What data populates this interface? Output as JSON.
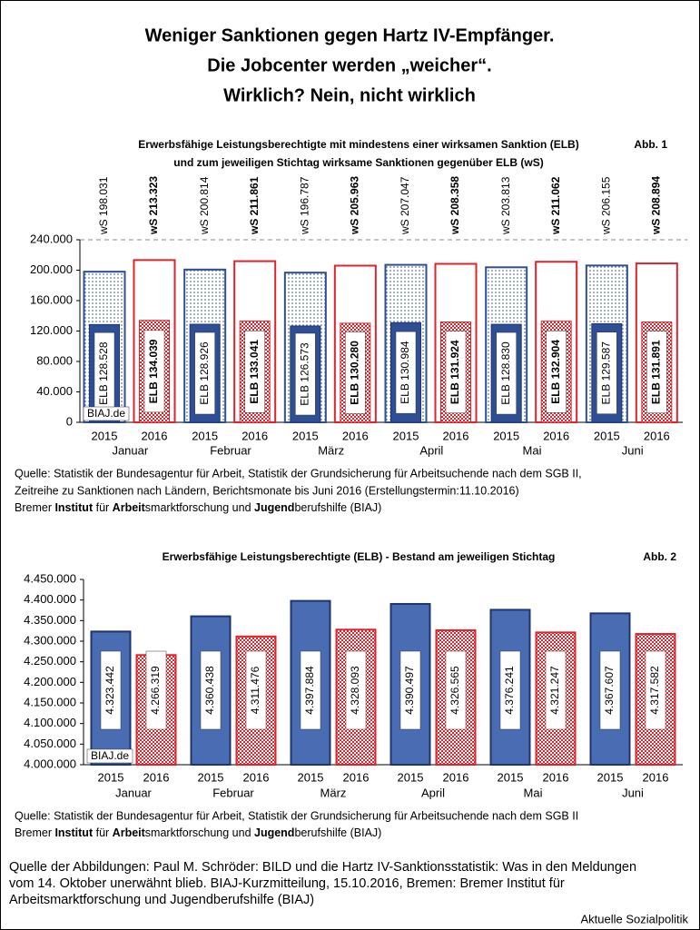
{
  "title": [
    "Weniger Sanktionen gegen Hartz IV-Empfänger.",
    "Die Jobcenter werden „weicher“.",
    "Wirklich? Nein, nicht wirklich"
  ],
  "chart_data": [
    {
      "type": "bar",
      "title": "Erwerbsfähige Leistungsberechtigte mit mindestens einer wirksamen Sanktion (ELB)",
      "subtitle": "und zum jeweiligen Stichtag wirksame Sanktionen gegenüber ELB (wS)",
      "figure_label": "Abb. 1",
      "categories": [
        "Januar",
        "Februar",
        "März",
        "April",
        "Mai",
        "Juni"
      ],
      "series": [
        {
          "name": "2015",
          "color": "#2f4f94",
          "values": [
            198031,
            200814,
            196787,
            207047,
            203813,
            206155
          ],
          "value_labels": [
            "wS 198.031",
            "wS 200.814",
            "wS 196.787",
            "wS 207.047",
            "wS 203.813",
            "wS 206.155"
          ],
          "inner_values": [
            128528,
            128926,
            126573,
            130984,
            128830,
            129587
          ],
          "inner_value_labels": [
            "ELB 128.528",
            "ELB 128.926",
            "ELB 126.573",
            "ELB 130.984",
            "ELB 128.830",
            "ELB 129.587"
          ]
        },
        {
          "name": "2016",
          "color": "#e0242b",
          "values": [
            213323,
            211861,
            205963,
            208358,
            211062,
            208894
          ],
          "value_labels": [
            "wS 213.323",
            "wS 211.861",
            "wS 205.963",
            "wS 208.358",
            "wS 211.062",
            "wS 208.894"
          ],
          "inner_values": [
            134039,
            133041,
            130280,
            131924,
            132904,
            131891
          ],
          "inner_value_labels": [
            "ELB 134.039",
            "ELB 133.041",
            "ELB 130.280",
            "ELB 131.924",
            "ELB 132.904",
            "ELB 131.891"
          ]
        }
      ],
      "ylim": [
        0,
        240000
      ],
      "yticks": [
        0,
        {
          "value": 40000,
          "label": "40.000"
        },
        {
          "value": 80000,
          "label": "80.000"
        },
        {
          "value": 120000,
          "label": "120.000"
        },
        {
          "value": 160000,
          "label": "160.000"
        },
        {
          "value": 200000,
          "label": "200.000"
        },
        {
          "value": 240000,
          "label": "240.000"
        }
      ],
      "watermark": "BIAJ.de",
      "source": [
        "Quelle:  Statistik der Bundesagentur für Arbeit, Statistik der Grundsicherung für Arbeitsuchende nach dem SGB II,",
        "Zeitreihe zu Sanktionen nach Ländern, Berichtsmonate bis Juni 2016 (Erstellungstermin:11.10.2016)"
      ],
      "credit": [
        "Bremer ",
        "Institut",
        " für ",
        "Arbeit",
        "smarktforschung und ",
        "Jugend",
        "berufshilfe (BIAJ)"
      ]
    },
    {
      "type": "bar",
      "title": "Erwerbsfähige Leistungsberechtigte (ELB) - Bestand am jeweiligen Stichtag",
      "figure_label": "Abb. 2",
      "categories": [
        "Januar",
        "Februar",
        "März",
        "April",
        "Mai",
        "Juni"
      ],
      "series": [
        {
          "name": "2015",
          "color": "#4a6cb3",
          "values": [
            4323442,
            4360438,
            4397884,
            4390497,
            4376241,
            4367607
          ],
          "value_labels": [
            "4.323.442",
            "4.360.438",
            "4.397.884",
            "4.390.497",
            "4.376.241",
            "4.367.607"
          ]
        },
        {
          "name": "2016",
          "color": "#e0242b",
          "values": [
            4266319,
            4311476,
            4328093,
            4326565,
            4321247,
            4317582
          ],
          "value_labels": [
            "4.266.319",
            "4.311.476",
            "4.328.093",
            "4.326.565",
            "4.321.247",
            "4.317.582"
          ]
        }
      ],
      "ylim": [
        4000000,
        4450000
      ],
      "yticks": [
        {
          "value": 4000000,
          "label": "4.000.000"
        },
        {
          "value": 4050000,
          "label": "4.050.000"
        },
        {
          "value": 4100000,
          "label": "4.100.000"
        },
        {
          "value": 4150000,
          "label": "4.150.000"
        },
        {
          "value": 4200000,
          "label": "4.200.000"
        },
        {
          "value": 4250000,
          "label": "4.250.000"
        },
        {
          "value": 4300000,
          "label": "4.300.000"
        },
        {
          "value": 4350000,
          "label": "4.350.000"
        },
        {
          "value": 4400000,
          "label": "4.400.000"
        },
        {
          "value": 4450000,
          "label": "4.450.000"
        }
      ],
      "watermark": "BIAJ.de",
      "source": [
        "Quelle:  Statistik der Bundesagentur für Arbeit, Statistik der Grundsicherung für Arbeitsuchende nach dem SGB II"
      ],
      "credit": [
        "Bremer ",
        "Institut",
        " für ",
        "Arbeit",
        "smarktforschung und ",
        "Jugend",
        "berufshilfe (BIAJ)"
      ]
    }
  ],
  "footer": {
    "text": [
      "Quelle der Abbildungen: Paul M. Schröder: BILD und die Hartz IV-Sanktionsstatistik: Was in den Meldungen",
      "vom 14. Oktober unerwähnt blieb. BIAJ-Kurzmitteilung, 15.10.2016, Bremen: Bremer Institut für",
      "Arbeitsmarktforschung und Jugendberufshilfe (BIAJ)"
    ],
    "brand": "Aktuelle Sozialpolitik"
  }
}
